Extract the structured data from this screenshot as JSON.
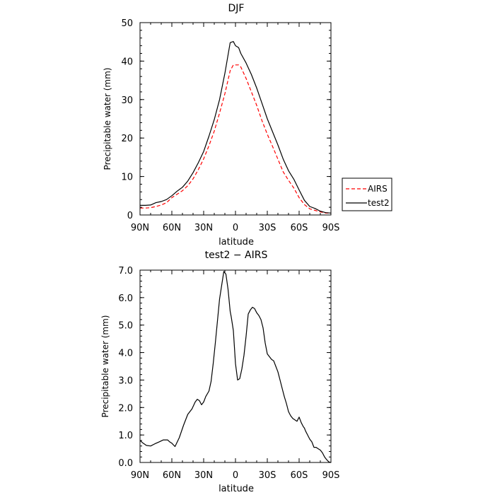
{
  "chart_data": [
    {
      "type": "line",
      "title": "DJF",
      "xlabel": "latitude",
      "ylabel": "Precipitable water  (mm)",
      "xlim": [
        90,
        -90
      ],
      "ylim": [
        0,
        50
      ],
      "x_ticks": [
        90,
        60,
        30,
        0,
        -30,
        -60,
        -90
      ],
      "x_tick_labels": [
        "90N",
        "60N",
        "30N",
        "0",
        "30S",
        "60S",
        "90S"
      ],
      "y_ticks": [
        0,
        10,
        20,
        30,
        40,
        50
      ],
      "y_tick_labels": [
        "0",
        "10",
        "20",
        "30",
        "40",
        "50"
      ],
      "legend": "right",
      "series": [
        {
          "name": "AIRS",
          "color": "#ff0000",
          "dash": "dashed",
          "x": [
            90,
            85,
            80,
            75,
            70,
            65,
            60,
            55,
            50,
            45,
            40,
            35,
            30,
            25,
            20,
            15,
            10,
            5,
            2,
            0,
            -3,
            -5,
            -10,
            -15,
            -20,
            -25,
            -30,
            -35,
            -40,
            -45,
            -50,
            -55,
            -60,
            -65,
            -70,
            -75,
            -80,
            -85,
            -90
          ],
          "y": [
            1.8,
            1.8,
            1.9,
            2.2,
            2.6,
            3.2,
            4.5,
            5.4,
            6.3,
            7.6,
            9.4,
            11.8,
            14.6,
            18.0,
            21.8,
            26.5,
            31.5,
            37.5,
            39.0,
            39.0,
            39.0,
            38.5,
            35.5,
            32.0,
            28.5,
            24.5,
            21.0,
            17.8,
            14.5,
            11.2,
            9.0,
            7.0,
            4.5,
            2.7,
            1.6,
            1.2,
            0.8,
            0.5,
            0.5
          ]
        },
        {
          "name": "test2",
          "color": "#000000",
          "dash": "solid",
          "x": [
            90,
            85,
            80,
            75,
            70,
            65,
            60,
            55,
            50,
            45,
            40,
            35,
            30,
            25,
            20,
            15,
            10,
            5,
            2,
            0,
            -3,
            -5,
            -10,
            -15,
            -20,
            -25,
            -30,
            -35,
            -40,
            -45,
            -50,
            -55,
            -60,
            -65,
            -70,
            -75,
            -80,
            -85,
            -90
          ],
          "y": [
            2.5,
            2.5,
            2.6,
            3.2,
            3.5,
            4.0,
            5.0,
            6.2,
            7.2,
            8.8,
            11.0,
            13.6,
            16.5,
            20.5,
            24.8,
            30.0,
            36.8,
            44.8,
            45.1,
            44.0,
            43.5,
            42.0,
            39.5,
            36.5,
            33.0,
            29.0,
            25.0,
            21.6,
            18.2,
            14.5,
            11.5,
            9.3,
            6.5,
            3.8,
            2.2,
            1.7,
            1.0,
            0.6,
            0.5
          ]
        }
      ]
    },
    {
      "type": "line",
      "title": "test2  −  AIRS",
      "xlabel": "latitude",
      "ylabel": "Precipitable water  (mm)",
      "xlim": [
        90,
        -90
      ],
      "ylim": [
        0,
        7
      ],
      "x_ticks": [
        90,
        60,
        30,
        0,
        -30,
        -60,
        -90
      ],
      "x_tick_labels": [
        "90N",
        "60N",
        "30N",
        "0",
        "30S",
        "60S",
        "90S"
      ],
      "y_ticks": [
        0,
        1,
        2,
        3,
        4,
        5,
        6,
        7
      ],
      "y_tick_labels": [
        "0.0",
        "1.0",
        "2.0",
        "3.0",
        "4.0",
        "5.0",
        "6.0",
        "7.0"
      ],
      "series": [
        {
          "color": "#000000",
          "dash": "solid",
          "x": [
            90,
            87,
            84,
            80,
            76,
            72,
            68,
            64,
            62,
            60,
            57,
            53,
            49,
            45,
            41,
            38,
            36,
            34,
            32,
            30,
            28,
            25,
            23,
            21,
            19,
            17,
            15,
            13,
            11,
            9,
            7,
            6,
            5,
            4,
            2,
            0,
            -2,
            -4,
            -6,
            -8,
            -10,
            -12,
            -14,
            -16,
            -18,
            -20,
            -22,
            -24,
            -26,
            -28,
            -30,
            -32,
            -34,
            -36,
            -38,
            -40,
            -42,
            -44,
            -46,
            -48,
            -50,
            -52,
            -54,
            -56,
            -58,
            -60,
            -62,
            -64,
            -65,
            -66,
            -68,
            -70,
            -72,
            -74,
            -76,
            -78,
            -80,
            -82,
            -84,
            -86,
            -88,
            -90
          ],
          "y": [
            0.8,
            0.7,
            0.62,
            0.6,
            0.68,
            0.75,
            0.82,
            0.82,
            0.75,
            0.7,
            0.58,
            0.9,
            1.35,
            1.75,
            1.95,
            2.2,
            2.3,
            2.25,
            2.1,
            2.2,
            2.4,
            2.6,
            2.95,
            3.6,
            4.35,
            5.15,
            5.95,
            6.45,
            6.95,
            6.85,
            6.3,
            5.9,
            5.5,
            5.3,
            4.8,
            3.6,
            3.0,
            3.05,
            3.4,
            3.9,
            4.6,
            5.4,
            5.55,
            5.65,
            5.6,
            5.45,
            5.35,
            5.2,
            4.9,
            4.35,
            3.95,
            3.85,
            3.75,
            3.7,
            3.5,
            3.3,
            3.0,
            2.7,
            2.4,
            2.15,
            1.85,
            1.7,
            1.6,
            1.55,
            1.5,
            1.65,
            1.45,
            1.3,
            1.25,
            1.15,
            1.0,
            0.85,
            0.75,
            0.55,
            0.55,
            0.5,
            0.45,
            0.35,
            0.2,
            0.1,
            0.02,
            0.0
          ]
        }
      ]
    }
  ]
}
